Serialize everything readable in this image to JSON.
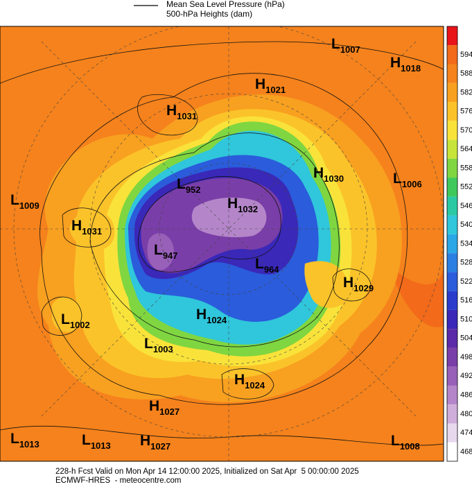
{
  "header": {
    "legend": [
      "Mean Sea Level Pressure (hPa)",
      "500-hPa Heights (dam)"
    ]
  },
  "colorbar": {
    "ticks": [
      594,
      588,
      582,
      576,
      570,
      564,
      558,
      552,
      546,
      540,
      534,
      528,
      522,
      516,
      510,
      504,
      498,
      492,
      486,
      480,
      474,
      468
    ],
    "colors": [
      "#e8141a",
      "#f26a1a",
      "#f5821c",
      "#f8a020",
      "#fbc32a",
      "#f9e33a",
      "#c7e43a",
      "#7fd641",
      "#3fc95c",
      "#2bc9a3",
      "#30c6db",
      "#2aa7e6",
      "#2a80e2",
      "#2a5cdb",
      "#2b3ccd",
      "#3a28b8",
      "#5b2aa8",
      "#7a3ea8",
      "#9860b8",
      "#b486c9",
      "#cfaedb",
      "#e8d8ee",
      "#ffffff"
    ]
  },
  "centers": [
    {
      "letter": "L",
      "value": 1007
    },
    {
      "letter": "H",
      "value": 1018
    },
    {
      "letter": "H",
      "value": 1021
    },
    {
      "letter": "H",
      "value": 1031
    },
    {
      "letter": "H",
      "value": 1030
    },
    {
      "letter": "L",
      "value": 1006
    },
    {
      "letter": "L",
      "value": 1009
    },
    {
      "letter": "H",
      "value": 1031
    },
    {
      "letter": "L",
      "value": 952
    },
    {
      "letter": "H",
      "value": 1032
    },
    {
      "letter": "L",
      "value": 947
    },
    {
      "letter": "L",
      "value": 964
    },
    {
      "letter": "H",
      "value": 1029
    },
    {
      "letter": "H",
      "value": 1024
    },
    {
      "letter": "L",
      "value": 1002
    },
    {
      "letter": "L",
      "value": 1003
    },
    {
      "letter": "H",
      "value": 1024
    },
    {
      "letter": "H",
      "value": 1027
    },
    {
      "letter": "L",
      "value": 1013
    },
    {
      "letter": "L",
      "value": 1013
    },
    {
      "letter": "H",
      "value": 1027
    },
    {
      "letter": "L",
      "value": 1008
    }
  ],
  "footer": [
    "228-h Fcst Valid on Mon Apr 14 12:00:00 2025, Initialized on Sat Apr  5 00:00:00 2025",
    "ECMWF-HRES  - meteocentre.com"
  ]
}
